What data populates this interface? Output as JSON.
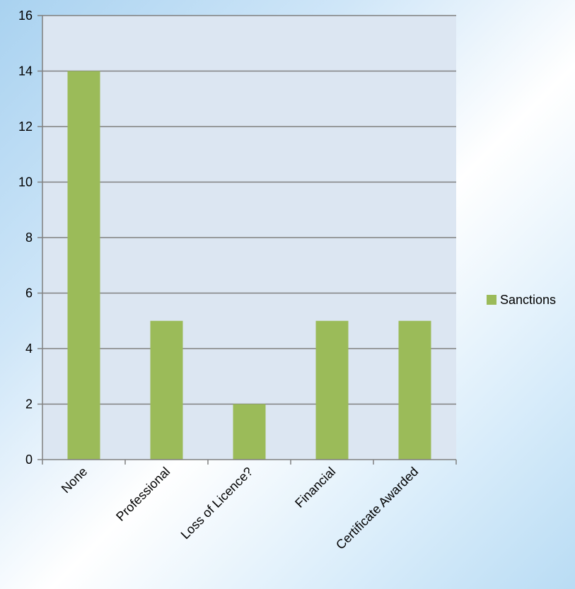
{
  "chart_data": {
    "type": "bar",
    "categories": [
      "None",
      "Professional",
      "Loss of Licence?",
      "Financial",
      "Certificate Awarded"
    ],
    "series": [
      {
        "name": "Sanctions",
        "values": [
          14,
          5,
          2,
          5,
          5
        ],
        "color": "#9bbb59"
      }
    ],
    "title": "",
    "xlabel": "",
    "ylabel": "",
    "ylim": [
      0,
      16
    ],
    "yticks": [
      0,
      2,
      4,
      6,
      8,
      10,
      12,
      14,
      16
    ],
    "grid": true,
    "legend": "right",
    "colors": {
      "plot_bg": "#dce6f2",
      "gridline": "#808080",
      "bar": "#9bbb59"
    }
  }
}
